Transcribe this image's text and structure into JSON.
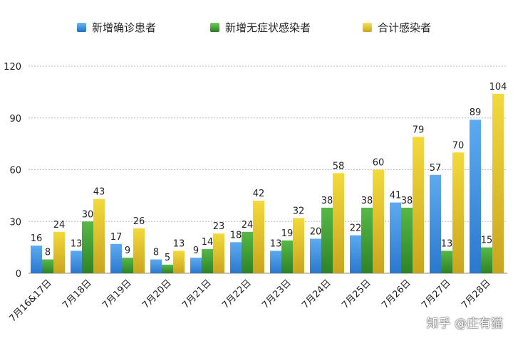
{
  "chart_data": {
    "type": "bar",
    "categories": [
      "7月16&17日",
      "7月18日",
      "7月19日",
      "7月20日",
      "7月21日",
      "7月22日",
      "7月23日",
      "7月24日",
      "7月25日",
      "7月26日",
      "7月27日",
      "7月28日"
    ],
    "series": [
      {
        "name": "新增确诊患者",
        "values": [
          16,
          13,
          17,
          8,
          9,
          18,
          13,
          20,
          22,
          41,
          57,
          89
        ],
        "color": "#3a8fe0"
      },
      {
        "name": "新增无症状感染者",
        "values": [
          8,
          30,
          9,
          5,
          14,
          24,
          19,
          38,
          38,
          38,
          13,
          15
        ],
        "color": "#3a9a2e"
      },
      {
        "name": "合计感染者",
        "values": [
          24,
          43,
          26,
          13,
          23,
          42,
          32,
          58,
          60,
          79,
          70,
          104
        ],
        "color": "#e3c52a"
      }
    ],
    "yticks": [
      0,
      30,
      60,
      90,
      120
    ],
    "ylim": [
      0,
      120
    ],
    "grid": true,
    "legend_position": "top"
  },
  "watermark": "知乎 @庄有猫"
}
